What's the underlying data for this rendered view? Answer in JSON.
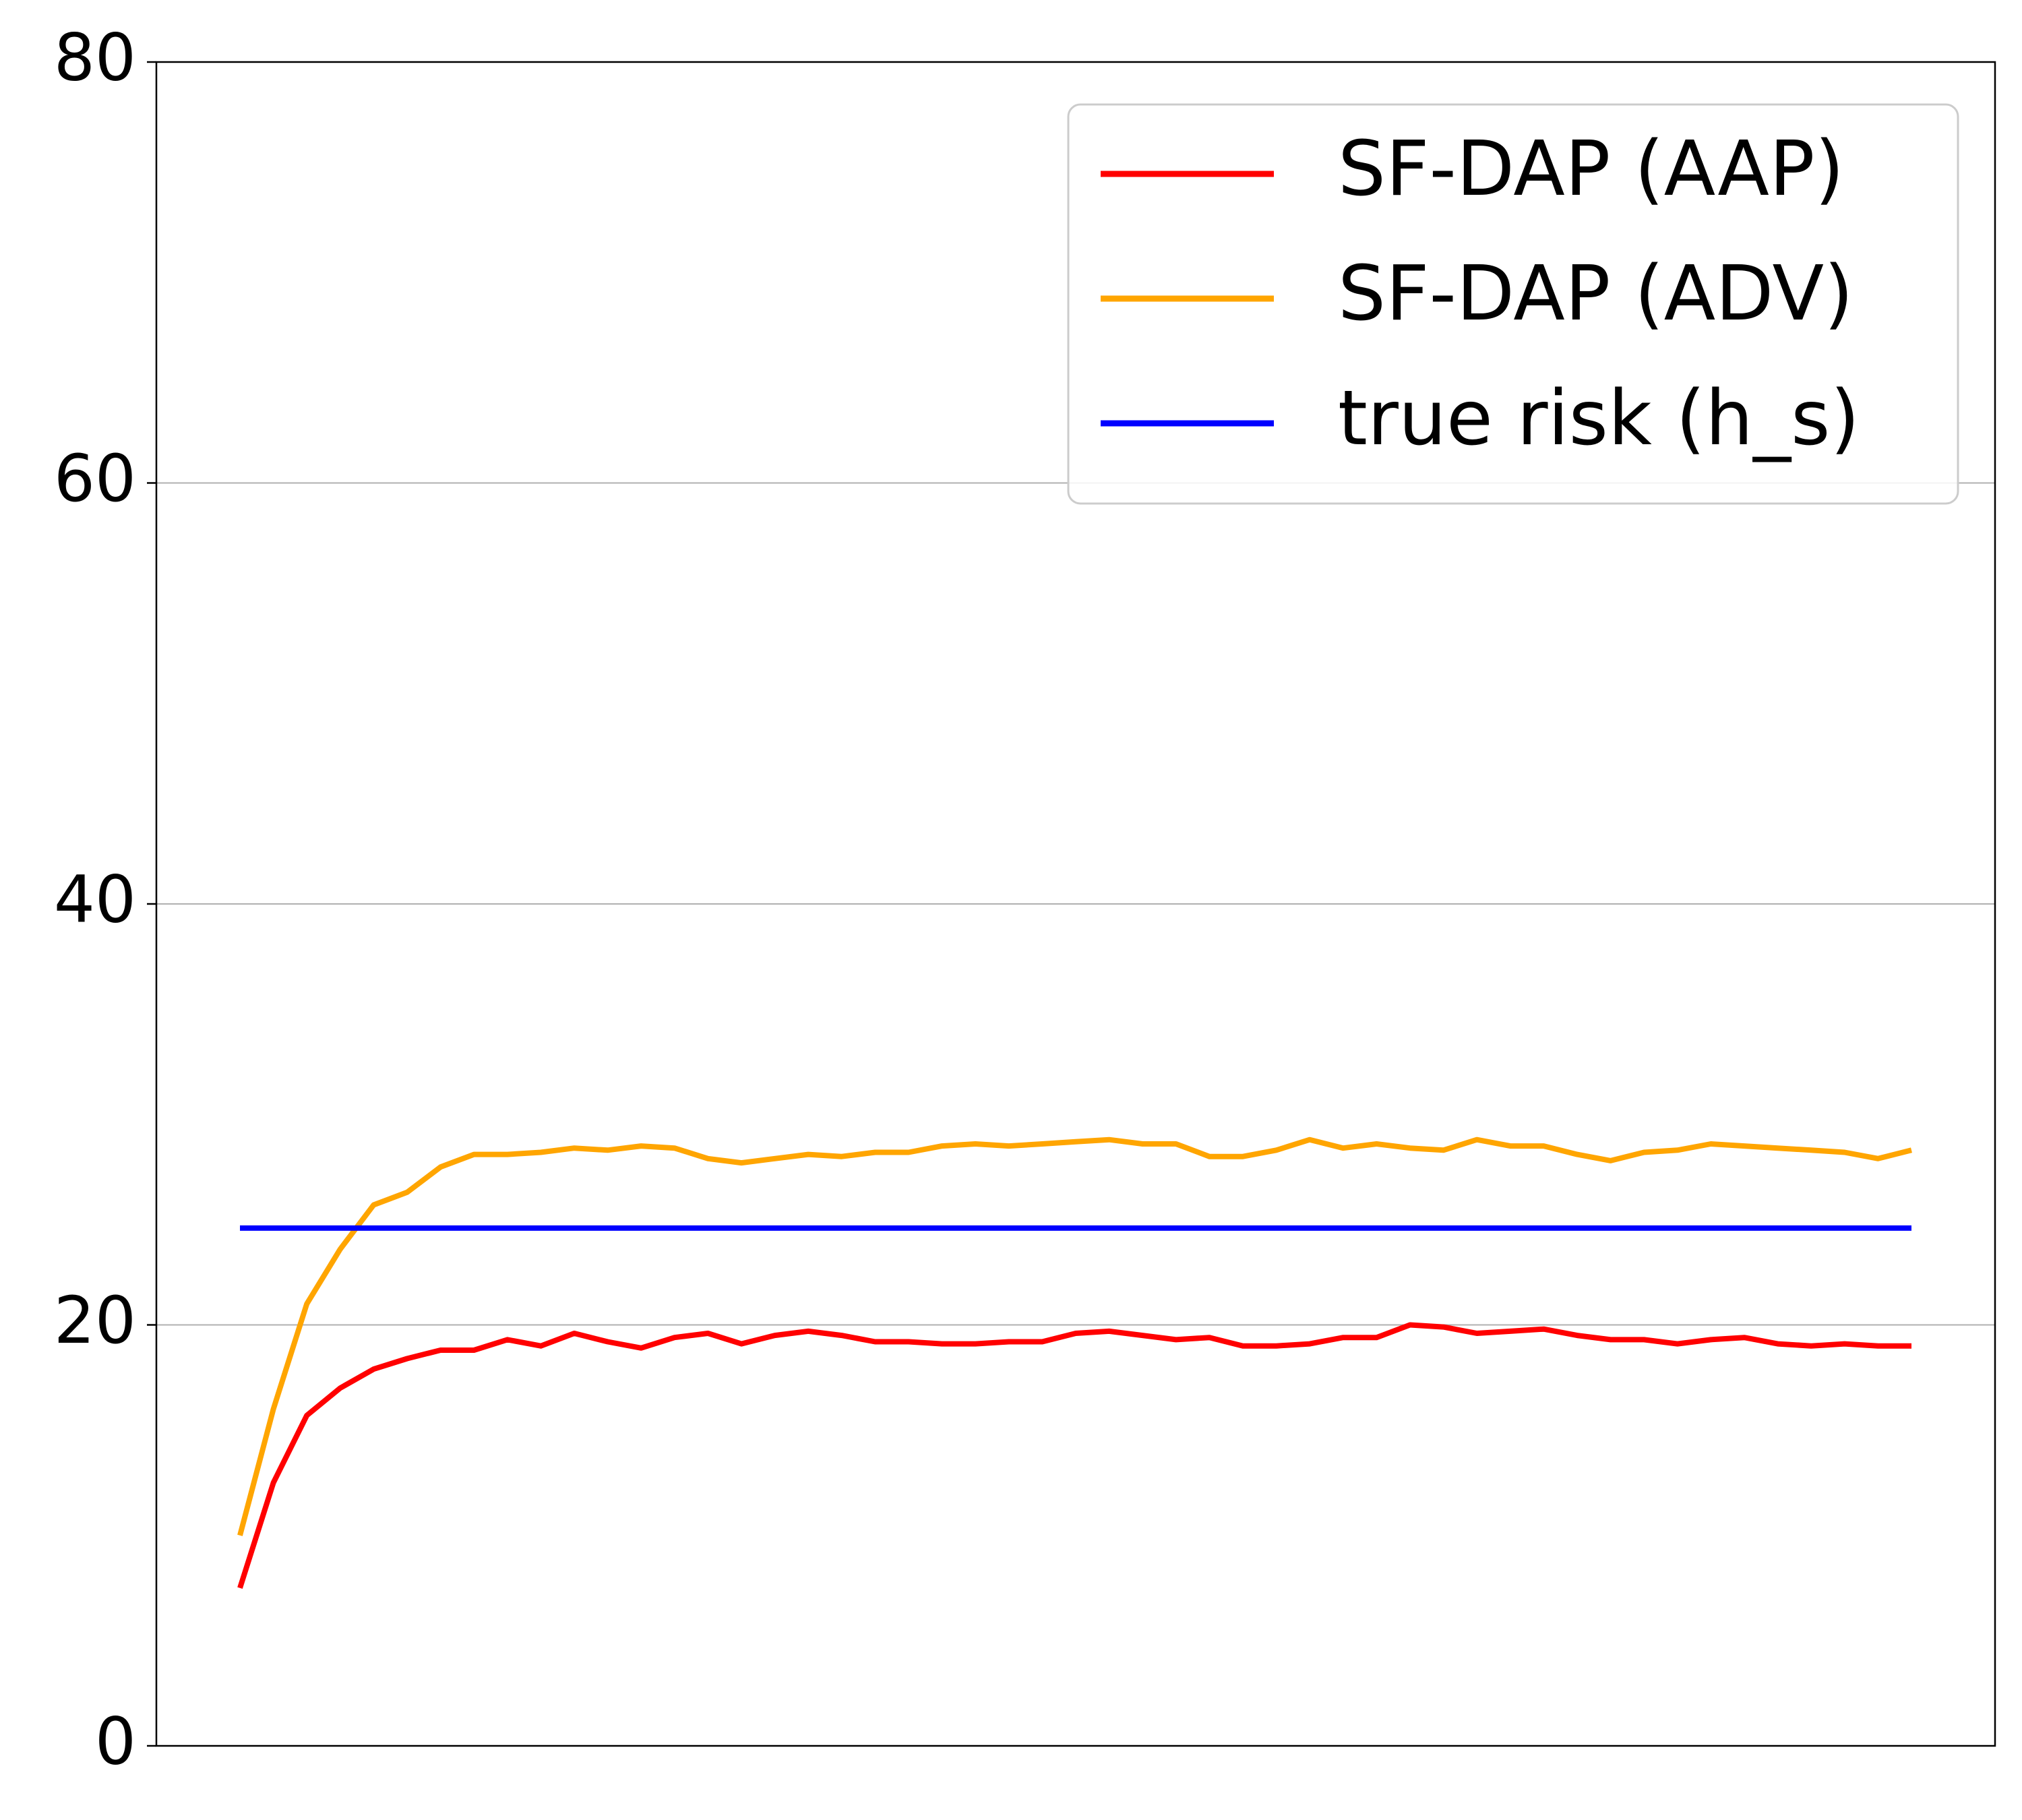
{
  "chart_data": {
    "type": "line",
    "title": "",
    "xlabel": "",
    "ylabel": "",
    "ylim": [
      0,
      80
    ],
    "xlim": [
      -2.5,
      52.5
    ],
    "yticks": [
      0,
      20,
      40,
      60,
      80
    ],
    "grid": "horizontal",
    "legend_position": "top-right",
    "x": [
      0,
      1,
      2,
      3,
      4,
      5,
      6,
      7,
      8,
      9,
      10,
      11,
      12,
      13,
      14,
      15,
      16,
      17,
      18,
      19,
      20,
      21,
      22,
      23,
      24,
      25,
      26,
      27,
      28,
      29,
      30,
      31,
      32,
      33,
      34,
      35,
      36,
      37,
      38,
      39,
      40,
      41,
      42,
      43,
      44,
      45,
      46,
      47,
      48,
      49,
      50
    ],
    "series": [
      {
        "name": "SF-DAP (AAP)",
        "color": "#ff0000",
        "values": [
          7.5,
          12.5,
          15.7,
          17.0,
          17.9,
          18.4,
          18.8,
          18.8,
          19.3,
          19.0,
          19.6,
          19.2,
          18.9,
          19.4,
          19.6,
          19.1,
          19.5,
          19.7,
          19.5,
          19.2,
          19.2,
          19.1,
          19.1,
          19.2,
          19.2,
          19.6,
          19.7,
          19.5,
          19.3,
          19.4,
          19.0,
          19.0,
          19.1,
          19.4,
          19.4,
          20.0,
          19.9,
          19.6,
          19.7,
          19.8,
          19.5,
          19.3,
          19.3,
          19.1,
          19.3,
          19.4,
          19.1,
          19.0,
          19.1,
          19.0,
          19.0
        ]
      },
      {
        "name": "SF-DAP (ADV)",
        "color": "#ffa500",
        "values": [
          10.0,
          16.0,
          21.0,
          23.6,
          25.7,
          26.3,
          27.5,
          28.1,
          28.1,
          28.2,
          28.4,
          28.3,
          28.5,
          28.4,
          27.9,
          27.7,
          27.9,
          28.1,
          28.0,
          28.2,
          28.2,
          28.5,
          28.6,
          28.5,
          28.6,
          28.7,
          28.8,
          28.6,
          28.6,
          28.0,
          28.0,
          28.3,
          28.8,
          28.4,
          28.6,
          28.4,
          28.3,
          28.8,
          28.5,
          28.5,
          28.1,
          27.8,
          28.2,
          28.3,
          28.6,
          28.5,
          28.4,
          28.3,
          28.2,
          27.9,
          28.3
        ]
      },
      {
        "name": "true risk (h_s)",
        "color": "#0000ff",
        "values": [
          24.6,
          24.6,
          24.6,
          24.6,
          24.6,
          24.6,
          24.6,
          24.6,
          24.6,
          24.6,
          24.6,
          24.6,
          24.6,
          24.6,
          24.6,
          24.6,
          24.6,
          24.6,
          24.6,
          24.6,
          24.6,
          24.6,
          24.6,
          24.6,
          24.6,
          24.6,
          24.6,
          24.6,
          24.6,
          24.6,
          24.6,
          24.6,
          24.6,
          24.6,
          24.6,
          24.6,
          24.6,
          24.6,
          24.6,
          24.6,
          24.6,
          24.6,
          24.6,
          24.6,
          24.6,
          24.6,
          24.6,
          24.6,
          24.6,
          24.6,
          24.6
        ]
      }
    ]
  }
}
